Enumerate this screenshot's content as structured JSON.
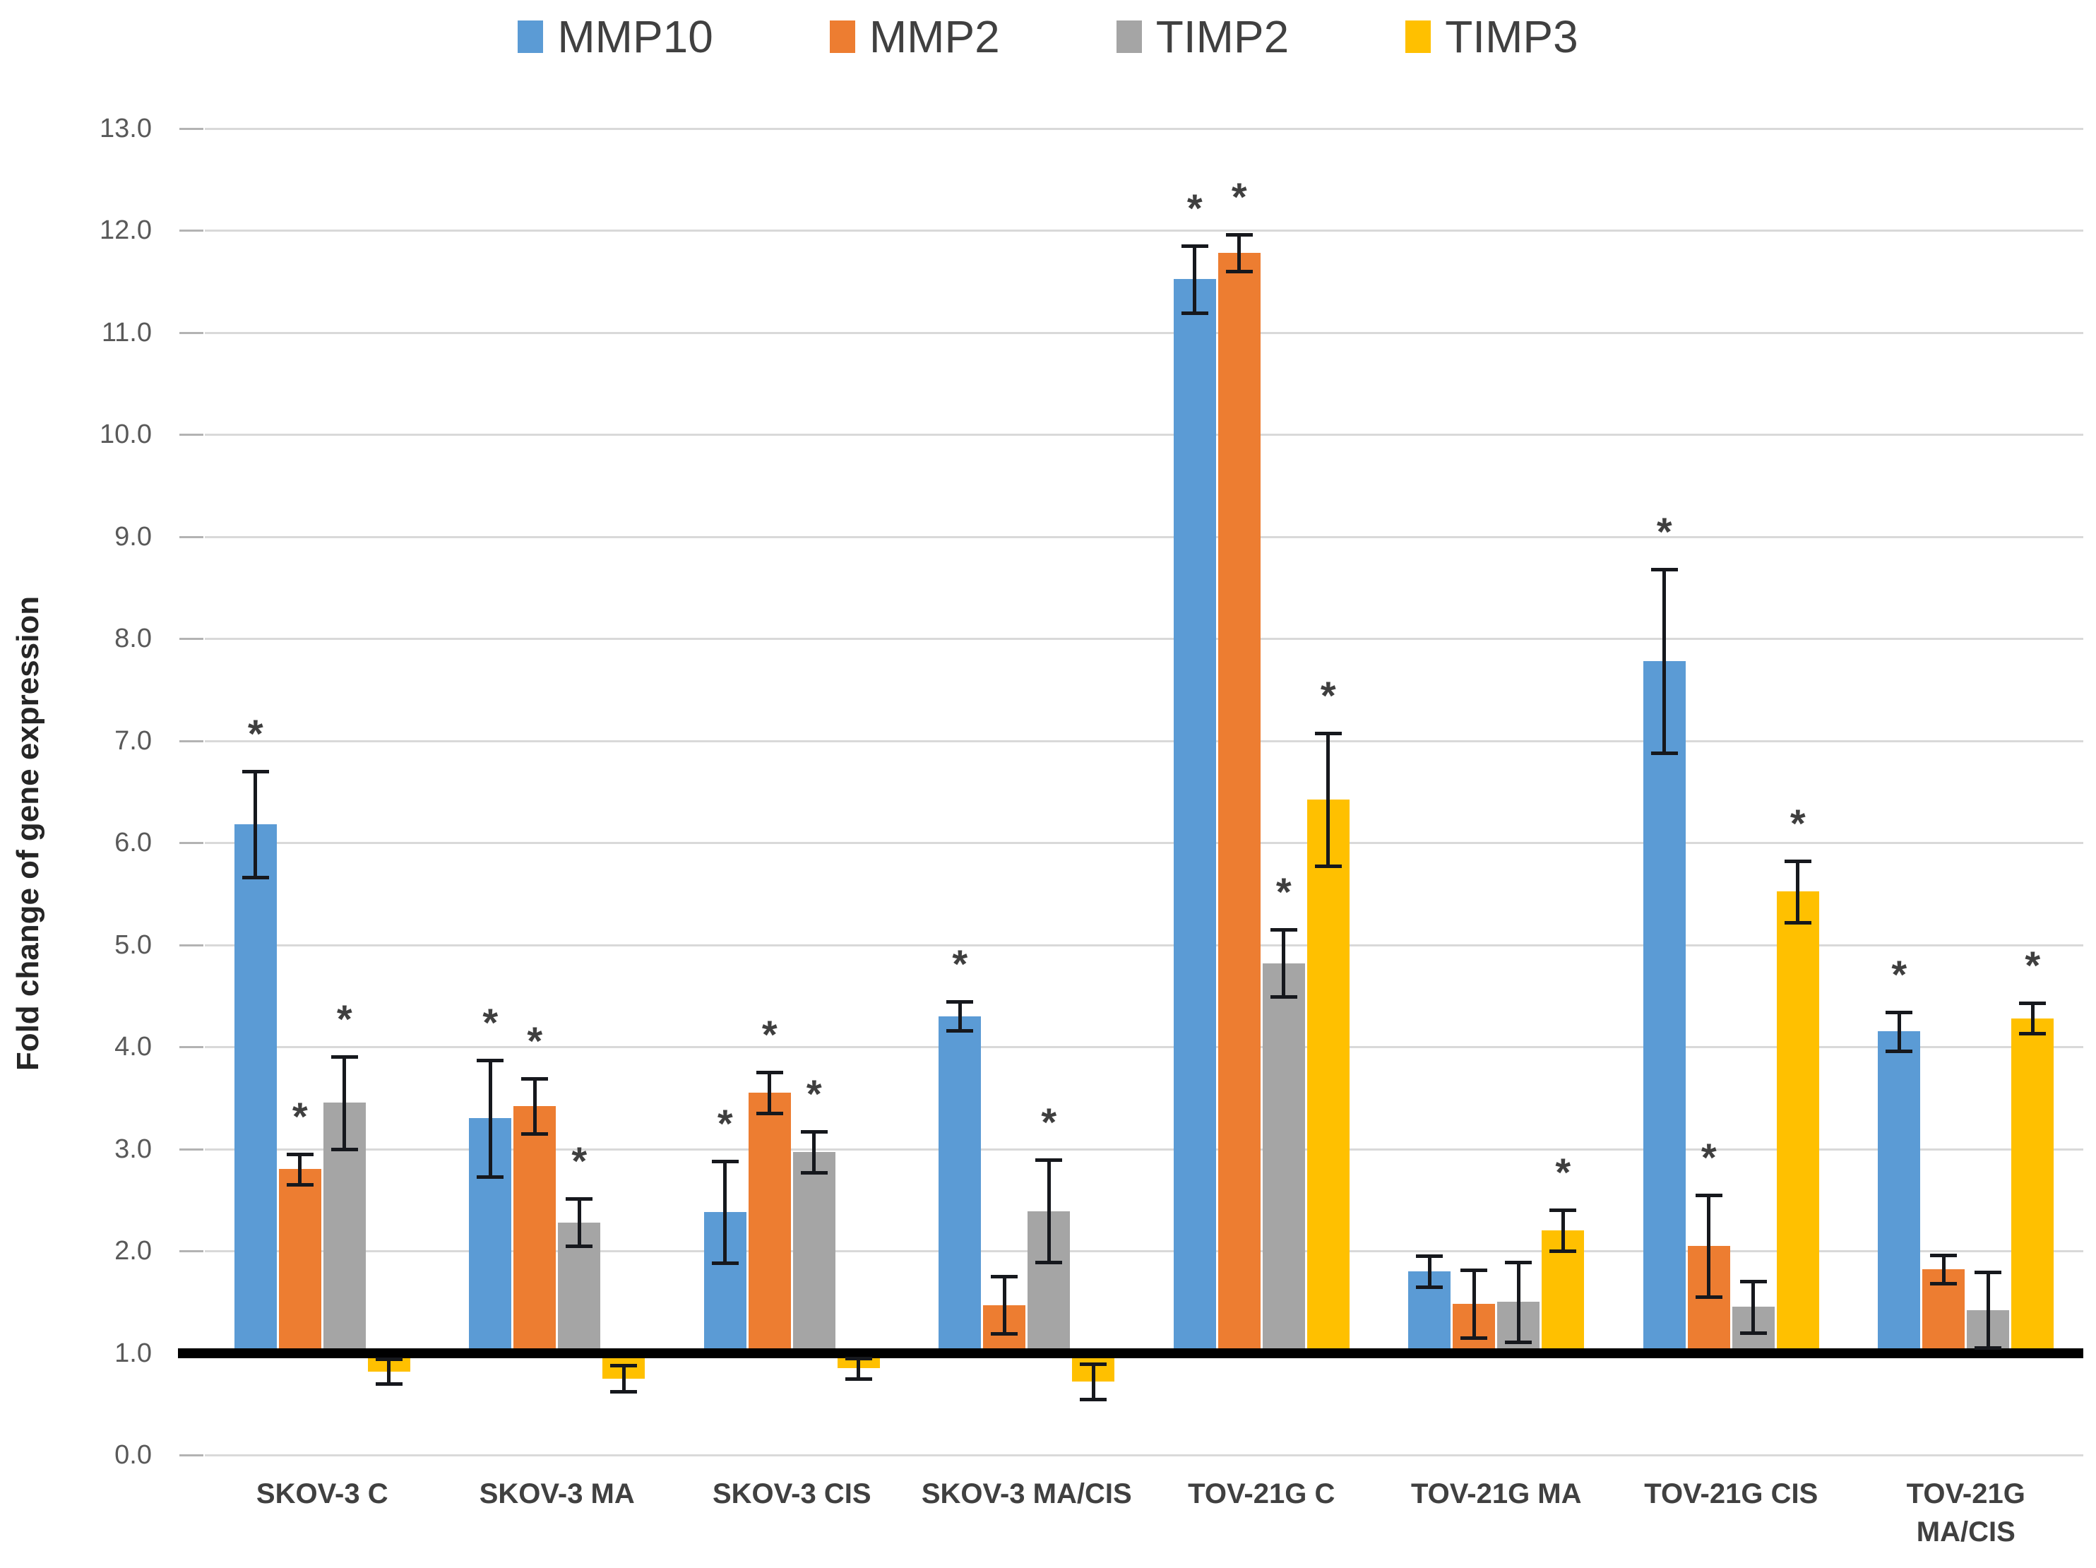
{
  "figure": {
    "significance_marker": "*"
  },
  "chart_data": {
    "type": "bar",
    "title": "",
    "xlabel": "",
    "ylabel": "Fold change of gene expression",
    "ylim": [
      0.0,
      13.0
    ],
    "ytick_step": 1.0,
    "ytick_labels": [
      "0.0",
      "1.0",
      "2.0",
      "3.0",
      "4.0",
      "5.0",
      "6.0",
      "7.0",
      "8.0",
      "9.0",
      "10.0",
      "11.0",
      "12.0",
      "13.0"
    ],
    "grid": true,
    "legend_position": "top",
    "bar_baseline": 1.0,
    "categories": [
      "SKOV-3 C",
      "SKOV-3 MA",
      "SKOV-3 CIS",
      "SKOV-3 MA/CIS",
      "TOV-21G C",
      "TOV-21G MA",
      "TOV-21G CIS",
      "TOV-21G MA/CIS"
    ],
    "series": [
      {
        "name": "MMP10",
        "color": "#5B9BD5",
        "values": [
          6.18,
          3.3,
          2.38,
          4.3,
          11.52,
          1.8,
          7.78,
          4.15
        ],
        "errors": [
          0.52,
          0.57,
          0.5,
          0.14,
          0.33,
          0.15,
          0.9,
          0.19
        ],
        "significant": [
          true,
          true,
          true,
          true,
          true,
          false,
          true,
          true
        ]
      },
      {
        "name": "MMP2",
        "color": "#ED7D31",
        "values": [
          2.8,
          3.42,
          3.55,
          1.47,
          11.78,
          1.48,
          2.05,
          1.82
        ],
        "errors": [
          0.15,
          0.27,
          0.2,
          0.28,
          0.18,
          0.33,
          0.5,
          0.14
        ],
        "significant": [
          true,
          true,
          true,
          false,
          true,
          false,
          true,
          false
        ]
      },
      {
        "name": "TIMP2",
        "color": "#A5A5A5",
        "values": [
          3.45,
          2.28,
          2.97,
          2.39,
          4.82,
          1.5,
          1.45,
          1.42
        ],
        "errors": [
          0.45,
          0.23,
          0.2,
          0.5,
          0.33,
          0.39,
          0.25,
          0.37
        ],
        "significant": [
          true,
          true,
          true,
          true,
          true,
          false,
          false,
          false
        ]
      },
      {
        "name": "TIMP3",
        "color": "#FFC000",
        "values": [
          0.82,
          0.75,
          0.85,
          0.72,
          6.42,
          2.2,
          5.52,
          4.28
        ],
        "errors": [
          0.12,
          0.13,
          0.1,
          0.17,
          0.65,
          0.2,
          0.3,
          0.15
        ],
        "significant": [
          false,
          false,
          false,
          false,
          true,
          true,
          true,
          true
        ]
      }
    ],
    "colors": {
      "gridline": "#d9d9d9",
      "baseline_rule": "#000000",
      "error_bar": "#16181d",
      "tick_text": "#595959",
      "axis_label_text": "#404040",
      "axis_title_text": "#262626"
    }
  }
}
